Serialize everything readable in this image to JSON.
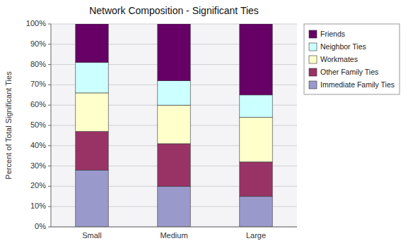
{
  "chart_data": {
    "type": "bar",
    "stacked": true,
    "title": "Network Composition - Significant Ties",
    "ylabel": "Percent of Total Significant Ties",
    "categories": [
      "Small",
      "Medium",
      "Large"
    ],
    "series": [
      {
        "name": "Immediate Family Ties",
        "color": "#9999cc",
        "values": [
          28,
          20,
          15
        ]
      },
      {
        "name": "Other Family Ties",
        "color": "#993366",
        "values": [
          19,
          21,
          17
        ]
      },
      {
        "name": "Workmates",
        "color": "#ffffcc",
        "values": [
          19,
          19,
          22
        ]
      },
      {
        "name": "Neighbor Ties",
        "color": "#ccffff",
        "values": [
          15,
          12,
          11
        ]
      },
      {
        "name": "Friends",
        "color": "#660066",
        "values": [
          19,
          28,
          35
        ]
      }
    ],
    "ylim": [
      0,
      100
    ],
    "yticks": [
      {
        "value": 0,
        "label": "0%"
      },
      {
        "value": 10,
        "label": "10%"
      },
      {
        "value": 20,
        "label": "20%"
      },
      {
        "value": 30,
        "label": "30%"
      },
      {
        "value": 40,
        "label": "40%"
      },
      {
        "value": 50,
        "label": "50%"
      },
      {
        "value": 60,
        "label": "60%"
      },
      {
        "value": 70,
        "label": "70%"
      },
      {
        "value": 80,
        "label": "80%"
      },
      {
        "value": 90,
        "label": "90%"
      },
      {
        "value": 100,
        "label": "100%"
      }
    ],
    "grid": true,
    "legend": "right"
  }
}
